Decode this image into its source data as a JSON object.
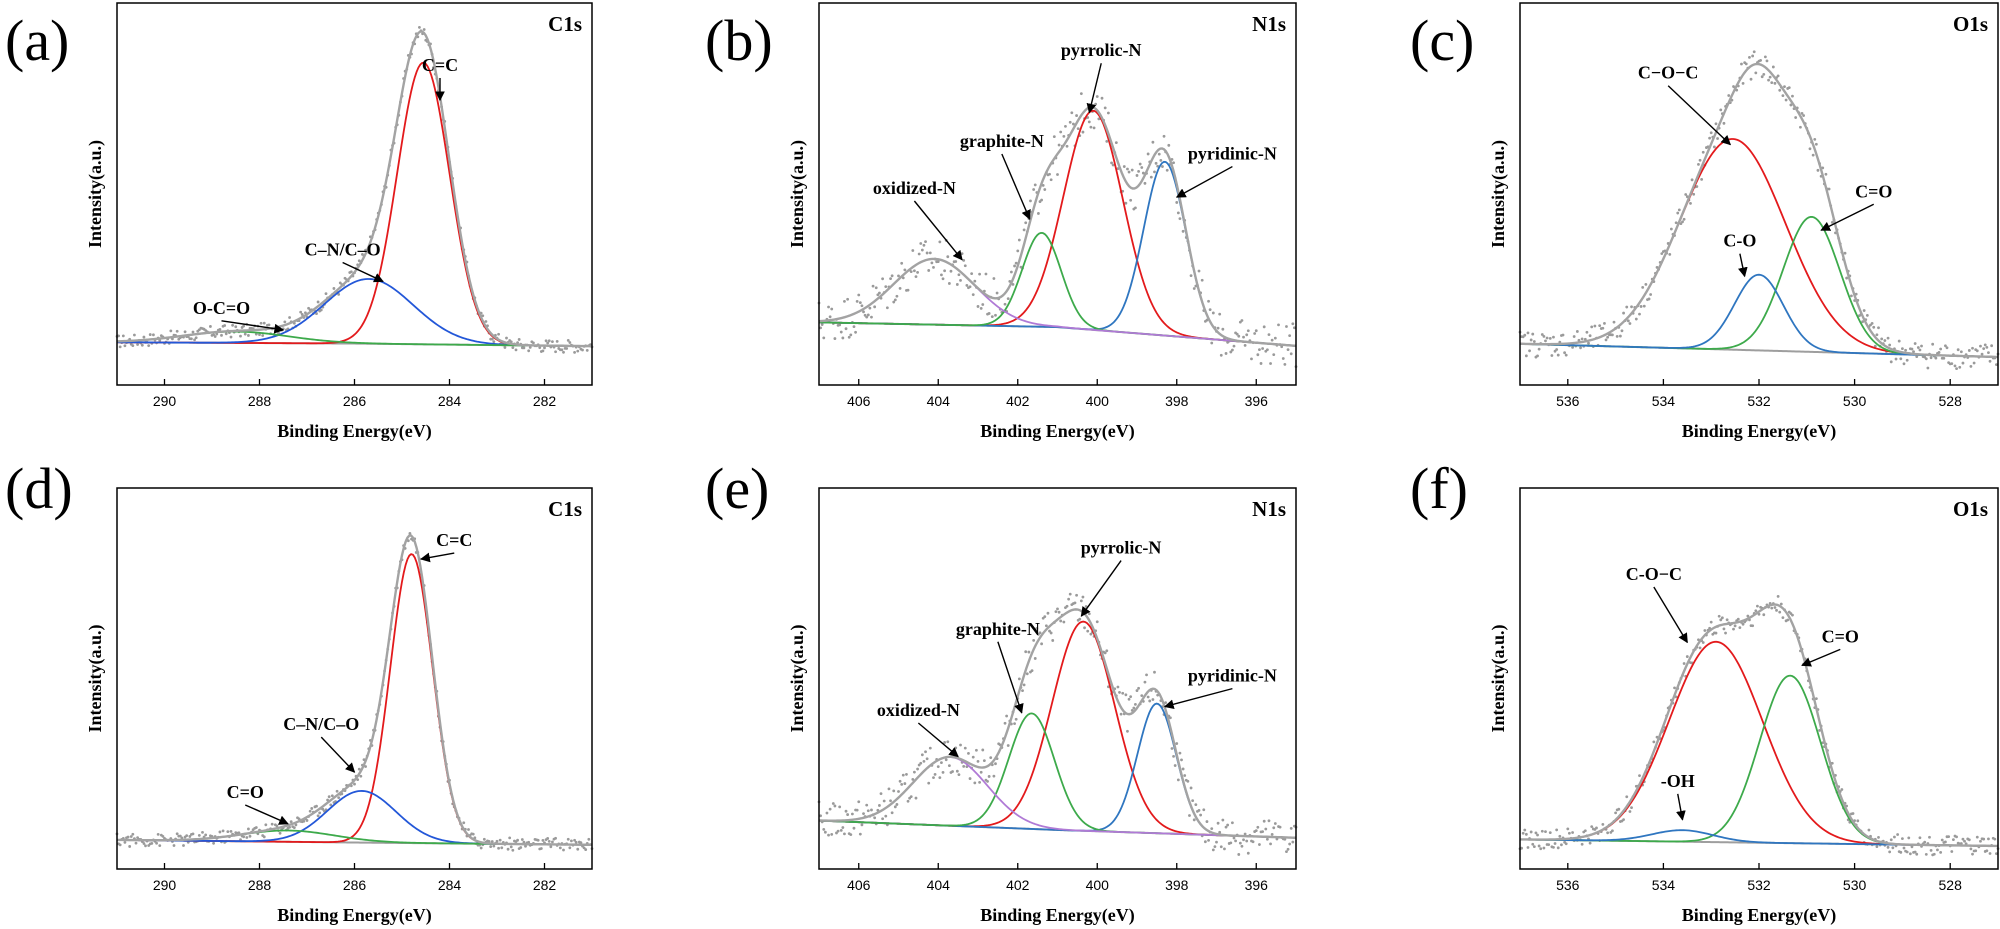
{
  "figure": {
    "xlabel": "Binding Energy(eV)",
    "ylabel": "Intensity(a.u.)"
  },
  "colors": {
    "envelope": "#a3a3a3",
    "raw": "#9a9a9a",
    "baseline": "#9e9e9e",
    "red": "#e31a1c",
    "blue": "#2357d8",
    "green": "#3daa4b",
    "steelblue": "#2f76c0",
    "purple": "#b07ad6"
  },
  "chart_data": [
    {
      "panel": "(a)",
      "title": "C1s",
      "type": "line",
      "xlim": [
        291,
        281
      ],
      "xticks": [
        290,
        288,
        286,
        284,
        282
      ],
      "ylim": [
        0,
        1.18
      ],
      "baseline": [
        [
          291,
          0.132
        ],
        [
          286,
          0.128
        ],
        [
          281,
          0.12
        ]
      ],
      "components": [
        {
          "name": "C=C",
          "center": 284.55,
          "height": 0.87,
          "fwhm": 1.3,
          "color": "red"
        },
        {
          "name": "C–N/C–O",
          "center": 285.7,
          "height": 0.2,
          "fwhm": 2.2,
          "color": "blue"
        },
        {
          "name": "O-C=O",
          "center": 288.5,
          "height": 0.035,
          "fwhm": 2.6,
          "color": "green"
        }
      ],
      "raw_noise": 0.02,
      "annotations": [
        {
          "label": "C=C",
          "x": 284.2,
          "y": 0.97,
          "tx": 284.2,
          "ty": 0.88
        },
        {
          "label": "C–N/C–O",
          "x": 286.25,
          "y": 0.4,
          "tx": 285.4,
          "ty": 0.32
        },
        {
          "label": "O-C=O",
          "x": 288.8,
          "y": 0.22,
          "tx": 287.5,
          "ty": 0.17
        }
      ]
    },
    {
      "panel": "(b)",
      "title": "N1s",
      "type": "line",
      "xlim": [
        407,
        395
      ],
      "xticks": [
        406,
        404,
        402,
        400,
        398,
        396
      ],
      "ylim": [
        0,
        1.22
      ],
      "baseline": [
        [
          407,
          0.2
        ],
        [
          401,
          0.185
        ],
        [
          395,
          0.125
        ]
      ],
      "components": [
        {
          "name": "pyrrolic-N",
          "center": 400.1,
          "height": 0.7,
          "fwhm": 1.75,
          "color": "red"
        },
        {
          "name": "pyridinic-N",
          "center": 398.3,
          "height": 0.555,
          "fwhm": 1.25,
          "color": "steelblue"
        },
        {
          "name": "graphite-N",
          "center": 401.4,
          "height": 0.3,
          "fwhm": 1.15,
          "color": "green"
        },
        {
          "name": "oxidized-N",
          "center": 404.1,
          "height": 0.21,
          "fwhm": 2.4,
          "color": "purple"
        }
      ],
      "raw_noise": 0.07,
      "annotations": [
        {
          "label": "pyrrolic-N",
          "x": 399.9,
          "y": 1.05,
          "tx": 400.2,
          "ty": 0.87
        },
        {
          "label": "pyridinic-N",
          "x": 396.6,
          "y": 0.72,
          "tx": 398.0,
          "ty": 0.6
        },
        {
          "label": "graphite-N",
          "x": 402.4,
          "y": 0.76,
          "tx": 401.7,
          "ty": 0.53
        },
        {
          "label": "oxidized-N",
          "x": 404.6,
          "y": 0.61,
          "tx": 403.4,
          "ty": 0.4
        }
      ]
    },
    {
      "panel": "(c)",
      "title": "O1s",
      "type": "line",
      "xlim": [
        537,
        527
      ],
      "xticks": [
        536,
        534,
        532,
        530,
        528
      ],
      "ylim": [
        0,
        1.16
      ],
      "baseline": [
        [
          537,
          0.125
        ],
        [
          532,
          0.105
        ],
        [
          527,
          0.085
        ]
      ],
      "components": [
        {
          "name": "C−O−C",
          "center": 532.55,
          "height": 0.64,
          "fwhm": 2.6,
          "color": "red"
        },
        {
          "name": "C=O",
          "center": 530.9,
          "height": 0.41,
          "fwhm": 1.4,
          "color": "green"
        },
        {
          "name": "C-O",
          "center": 532.0,
          "height": 0.23,
          "fwhm": 1.2,
          "color": "steelblue"
        }
      ],
      "raw_noise": 0.04,
      "annotations": [
        {
          "label": "C−O−C",
          "x": 533.9,
          "y": 0.93,
          "tx": 532.6,
          "ty": 0.73
        },
        {
          "label": "C=O",
          "x": 529.6,
          "y": 0.57,
          "tx": 530.7,
          "ty": 0.47
        },
        {
          "label": "C-O",
          "x": 532.4,
          "y": 0.42,
          "tx": 532.3,
          "ty": 0.33
        }
      ]
    },
    {
      "panel": "(d)",
      "title": "C1s",
      "type": "line",
      "xlim": [
        291,
        281
      ],
      "xticks": [
        290,
        288,
        286,
        284,
        282
      ],
      "ylim": [
        0,
        1.18
      ],
      "baseline": [
        [
          291,
          0.09
        ],
        [
          286,
          0.082
        ],
        [
          281,
          0.075
        ]
      ],
      "components": [
        {
          "name": "C=C",
          "center": 284.8,
          "height": 0.895,
          "fwhm": 1.05,
          "color": "red"
        },
        {
          "name": "C–N/C–O",
          "center": 285.85,
          "height": 0.16,
          "fwhm": 1.7,
          "color": "blue"
        },
        {
          "name": "C=O",
          "center": 287.4,
          "height": 0.035,
          "fwhm": 2.3,
          "color": "green"
        }
      ],
      "raw_noise": 0.02,
      "annotations": [
        {
          "label": "C=C",
          "x": 283.9,
          "y": 1.0,
          "tx": 284.6,
          "ty": 0.96
        },
        {
          "label": "C–N/C–O",
          "x": 286.7,
          "y": 0.43,
          "tx": 286.0,
          "ty": 0.3
        },
        {
          "label": "C=O",
          "x": 288.3,
          "y": 0.22,
          "tx": 287.4,
          "ty": 0.14
        }
      ]
    },
    {
      "panel": "(e)",
      "title": "N1s",
      "type": "line",
      "xlim": [
        407,
        395
      ],
      "xticks": [
        406,
        404,
        402,
        400,
        398,
        396
      ],
      "ylim": [
        0,
        1.22
      ],
      "baseline": [
        [
          407,
          0.155
        ],
        [
          401,
          0.125
        ],
        [
          395,
          0.1
        ]
      ],
      "components": [
        {
          "name": "pyrrolic-N",
          "center": 400.35,
          "height": 0.67,
          "fwhm": 1.85,
          "color": "red"
        },
        {
          "name": "pyridinic-N",
          "center": 398.5,
          "height": 0.415,
          "fwhm": 1.15,
          "color": "steelblue"
        },
        {
          "name": "graphite-N",
          "center": 401.65,
          "height": 0.37,
          "fwhm": 1.35,
          "color": "green"
        },
        {
          "name": "oxidized-N",
          "center": 403.7,
          "height": 0.22,
          "fwhm": 2.2,
          "color": "purple"
        }
      ],
      "raw_noise": 0.06,
      "annotations": [
        {
          "label": "pyrrolic-N",
          "x": 399.4,
          "y": 1.01,
          "tx": 400.4,
          "ty": 0.81
        },
        {
          "label": "pyridinic-N",
          "x": 396.6,
          "y": 0.6,
          "tx": 398.3,
          "ty": 0.52
        },
        {
          "label": "graphite-N",
          "x": 402.5,
          "y": 0.75,
          "tx": 401.9,
          "ty": 0.5
        },
        {
          "label": "oxidized-N",
          "x": 404.5,
          "y": 0.49,
          "tx": 403.5,
          "ty": 0.36
        }
      ]
    },
    {
      "panel": "(f)",
      "title": "O1s",
      "type": "line",
      "xlim": [
        537,
        527
      ],
      "xticks": [
        536,
        534,
        532,
        530,
        528
      ],
      "ylim": [
        0,
        1.16
      ],
      "baseline": [
        [
          537,
          0.09
        ],
        [
          532,
          0.08
        ],
        [
          527,
          0.07
        ]
      ],
      "components": [
        {
          "name": "C-O−C",
          "center": 532.9,
          "height": 0.61,
          "fwhm": 2.3,
          "color": "red"
        },
        {
          "name": "C=O",
          "center": 531.35,
          "height": 0.51,
          "fwhm": 1.5,
          "color": "green"
        },
        {
          "name": "-OH",
          "center": 533.6,
          "height": 0.035,
          "fwhm": 1.5,
          "color": "steelblue"
        }
      ],
      "raw_noise": 0.03,
      "annotations": [
        {
          "label": "C-O−C",
          "x": 534.2,
          "y": 0.88,
          "tx": 533.5,
          "ty": 0.69
        },
        {
          "label": "C=O",
          "x": 530.3,
          "y": 0.69,
          "tx": 531.1,
          "ty": 0.62
        },
        {
          "label": "-OH",
          "x": 533.7,
          "y": 0.25,
          "tx": 533.6,
          "ty": 0.15
        }
      ]
    }
  ]
}
